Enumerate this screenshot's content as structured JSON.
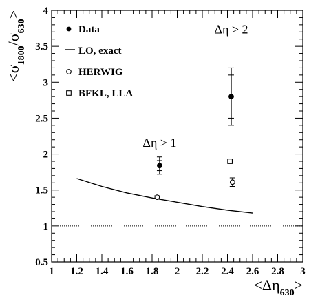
{
  "chart_data": {
    "type": "scatter",
    "x_range": [
      1,
      3
    ],
    "y_range": [
      0.5,
      4
    ],
    "x_ticks": [
      "1",
      "1.2",
      "1.4",
      "1.6",
      "1.8",
      "2",
      "2.2",
      "2.4",
      "2.6",
      "2.8",
      "3"
    ],
    "y_ticks": [
      "0.5",
      "1",
      "1.5",
      "2",
      "2.5",
      "3",
      "3.5",
      "4"
    ],
    "xlabel": {
      "pre": "<Δη",
      "sub": "630",
      "post": ">"
    },
    "ylabel": {
      "pre": "<σ",
      "sub1": "1800",
      "mid": "/σ",
      "sub2": "630",
      "post": ">"
    },
    "grid": false,
    "legend_position": "top-left",
    "legend": [
      {
        "label": "Data",
        "marker": "filled-circle"
      },
      {
        "label": "LO, exact",
        "marker": "line"
      },
      {
        "label": "HERWIG",
        "marker": "open-circle"
      },
      {
        "label": "BFKL, LLA",
        "marker": "open-square"
      }
    ],
    "series": [
      {
        "name": "Data",
        "points": [
          {
            "x": 1.86,
            "y": 1.84,
            "err_stat": 0.07,
            "err_tot": 0.12
          },
          {
            "x": 2.43,
            "y": 2.8,
            "err_stat": 0.3,
            "err_tot": 0.4
          }
        ]
      },
      {
        "name": "LO, exact",
        "points": [
          {
            "x": 1.2,
            "y": 1.66
          },
          {
            "x": 1.4,
            "y": 1.55
          },
          {
            "x": 1.6,
            "y": 1.46
          },
          {
            "x": 1.8,
            "y": 1.39
          },
          {
            "x": 2.0,
            "y": 1.33
          },
          {
            "x": 2.2,
            "y": 1.27
          },
          {
            "x": 2.4,
            "y": 1.22
          },
          {
            "x": 2.6,
            "y": 1.18
          }
        ]
      },
      {
        "name": "HERWIG",
        "points": [
          {
            "x": 1.84,
            "y": 1.4,
            "err": 0.02
          },
          {
            "x": 2.44,
            "y": 1.61,
            "err": 0.06
          }
        ]
      },
      {
        "name": "BFKL, LLA",
        "points": [
          {
            "x": 2.42,
            "y": 1.9
          }
        ]
      }
    ],
    "reference_line": {
      "y": 1.0,
      "style": "dotted"
    },
    "annotations": [
      {
        "text": "Δη > 1",
        "x": 1.86,
        "y": 2.1
      },
      {
        "text": "Δη > 2",
        "x": 2.43,
        "y": 3.68
      }
    ]
  }
}
